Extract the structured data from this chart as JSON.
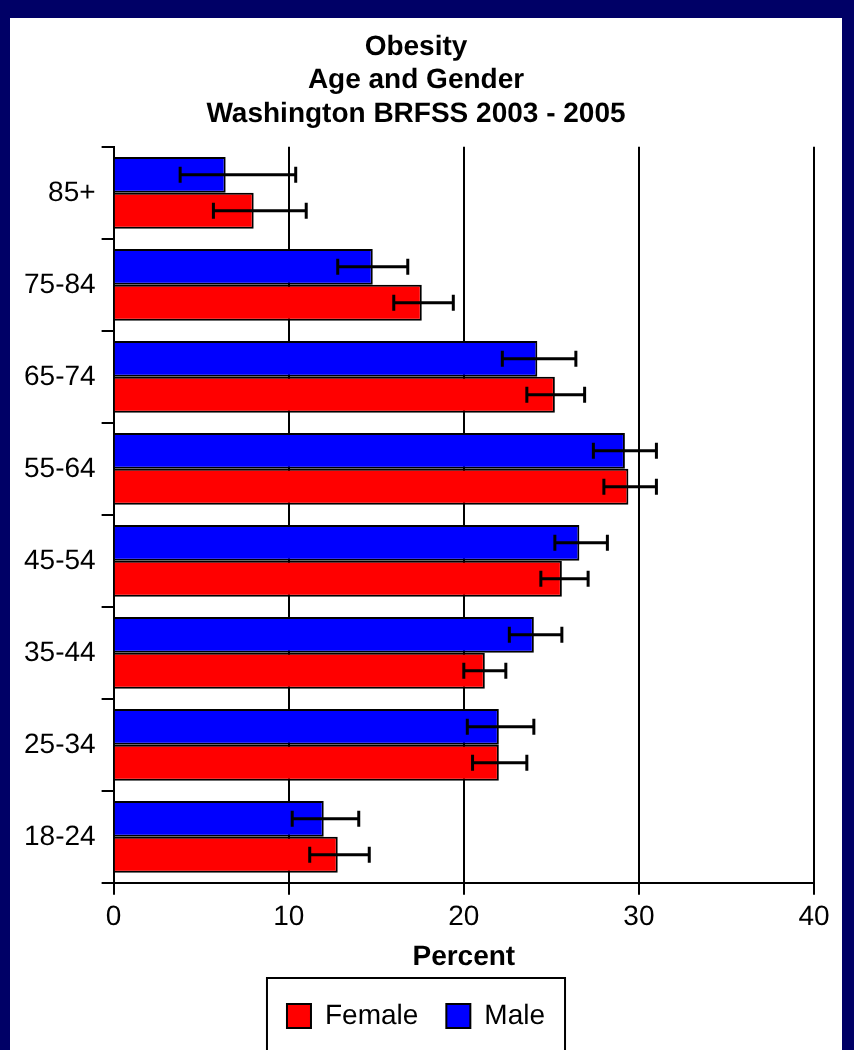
{
  "chart_data": {
    "type": "bar",
    "orientation": "horizontal",
    "title": "Obesity\nAge and Gender\nWashington BRFSS 2003 - 2005",
    "xlabel": "Percent",
    "categories": [
      "85+",
      "75-84",
      "65-74",
      "55-64",
      "45-54",
      "35-44",
      "25-34",
      "18-24"
    ],
    "series": [
      {
        "name": "Female",
        "color": "#ff0000",
        "values": [
          8.0,
          17.6,
          25.2,
          29.4,
          25.6,
          21.2,
          22.0,
          12.8
        ],
        "errors": [
          [
            5.7,
            11.0
          ],
          [
            16.0,
            19.4
          ],
          [
            23.6,
            26.9
          ],
          [
            28.0,
            31.0
          ],
          [
            24.4,
            27.1
          ],
          [
            20.0,
            22.4
          ],
          [
            20.5,
            23.6
          ],
          [
            11.2,
            14.6
          ]
        ]
      },
      {
        "name": "Male",
        "color": "#0000ff",
        "values": [
          6.4,
          14.8,
          24.2,
          29.2,
          26.6,
          24.0,
          22.0,
          12.0
        ],
        "errors": [
          [
            3.8,
            10.4
          ],
          [
            12.8,
            16.8
          ],
          [
            22.2,
            26.4
          ],
          [
            27.4,
            31.0
          ],
          [
            25.2,
            28.2
          ],
          [
            22.6,
            25.6
          ],
          [
            20.2,
            24.0
          ],
          [
            10.2,
            14.0
          ]
        ]
      }
    ],
    "xlim": [
      0,
      40
    ],
    "xticks": [
      0,
      10,
      20,
      30,
      40
    ],
    "grid": "x",
    "legend": "bottom"
  }
}
